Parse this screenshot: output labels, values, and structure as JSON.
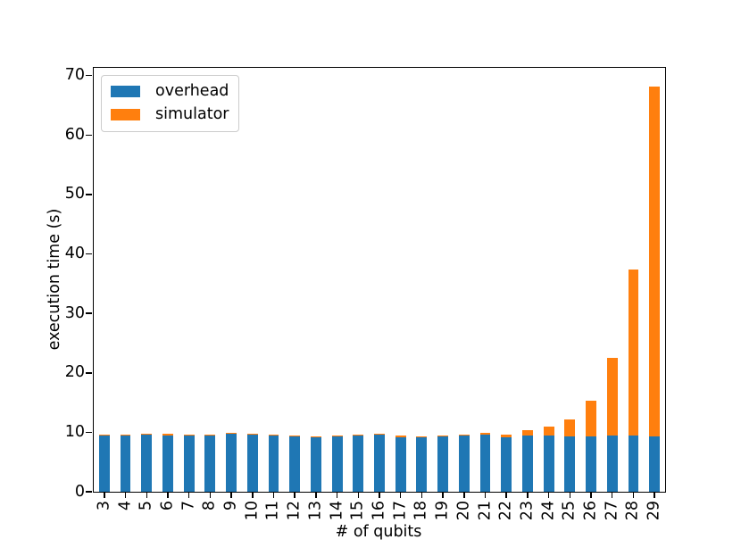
{
  "figure": {
    "background": "#ffffff",
    "spine_color": "#000000"
  },
  "chart_data": {
    "type": "bar",
    "stacked": true,
    "title": "",
    "xlabel": "# of qubits",
    "ylabel": "execution time (s)",
    "categories": [
      "3",
      "4",
      "5",
      "6",
      "7",
      "8",
      "9",
      "10",
      "11",
      "12",
      "13",
      "14",
      "15",
      "16",
      "17",
      "18",
      "19",
      "20",
      "21",
      "22",
      "23",
      "24",
      "25",
      "26",
      "27",
      "28",
      "29"
    ],
    "series": [
      {
        "name": "overhead",
        "color": "#1f77b4",
        "values": [
          9.45,
          9.5,
          9.6,
          9.5,
          9.45,
          9.4,
          9.7,
          9.55,
          9.4,
          9.3,
          9.15,
          9.3,
          9.4,
          9.55,
          9.2,
          9.1,
          9.25,
          9.4,
          9.55,
          9.2,
          9.5,
          9.5,
          9.3,
          9.25,
          9.45,
          9.4,
          9.3
        ]
      },
      {
        "name": "simulator",
        "color": "#ff7f0e",
        "values": [
          0.15,
          0.15,
          0.2,
          0.2,
          0.2,
          0.2,
          0.2,
          0.2,
          0.2,
          0.2,
          0.2,
          0.2,
          0.2,
          0.2,
          0.2,
          0.2,
          0.2,
          0.2,
          0.4,
          0.4,
          0.8,
          1.45,
          2.9,
          6.1,
          13.1,
          28.0,
          58.9
        ]
      }
    ],
    "ylim": [
      0,
      71.3
    ],
    "yticks": [
      0,
      10,
      20,
      30,
      40,
      50,
      60,
      70
    ],
    "legend_position": "upper-left",
    "grid": false
  }
}
